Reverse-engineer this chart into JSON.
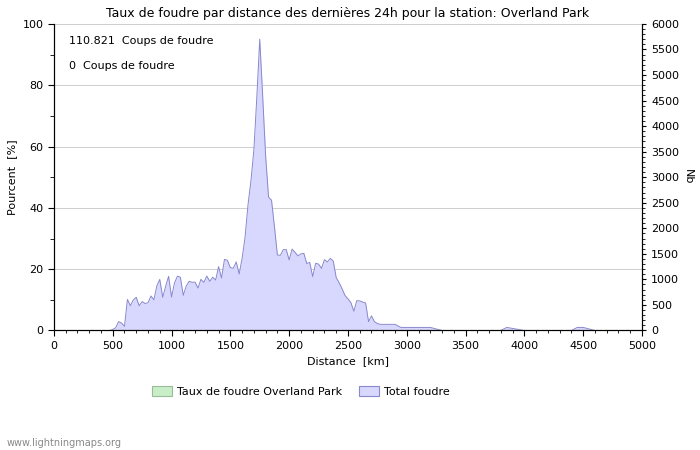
{
  "title": "Taux de foudre par distance des dernières 24h pour la station: Overland Park",
  "xlabel": "Distance  [km]",
  "ylabel_left": "Pourcent  [%]",
  "ylabel_right": "Nb",
  "annotation_line1": "110.821  Coups de foudre",
  "annotation_line2": "0  Coups de foudre",
  "watermark": "www.lightningmaps.org",
  "xlim": [
    0,
    5000
  ],
  "ylim_left": [
    0,
    100
  ],
  "ylim_right": [
    0,
    6000
  ],
  "yticks_left": [
    0,
    20,
    40,
    60,
    80,
    100
  ],
  "yticks_right": [
    0,
    500,
    1000,
    1500,
    2000,
    2500,
    3000,
    3500,
    4000,
    4500,
    5000,
    5500,
    6000
  ],
  "xticks": [
    0,
    500,
    1000,
    1500,
    2000,
    2500,
    3000,
    3500,
    4000,
    4500,
    5000
  ],
  "legend_entries": [
    "Taux de foudre Overland Park",
    "Total foudre"
  ],
  "fill_color": "#d8d8ff",
  "green_fill_color": "#c8eec8",
  "line_color": "#8888cc",
  "green_line_color": "#88bb88",
  "background_color": "#ffffff",
  "grid_color": "#bbbbbb",
  "title_fontsize": 9,
  "label_fontsize": 8,
  "annot_fontsize": 8
}
